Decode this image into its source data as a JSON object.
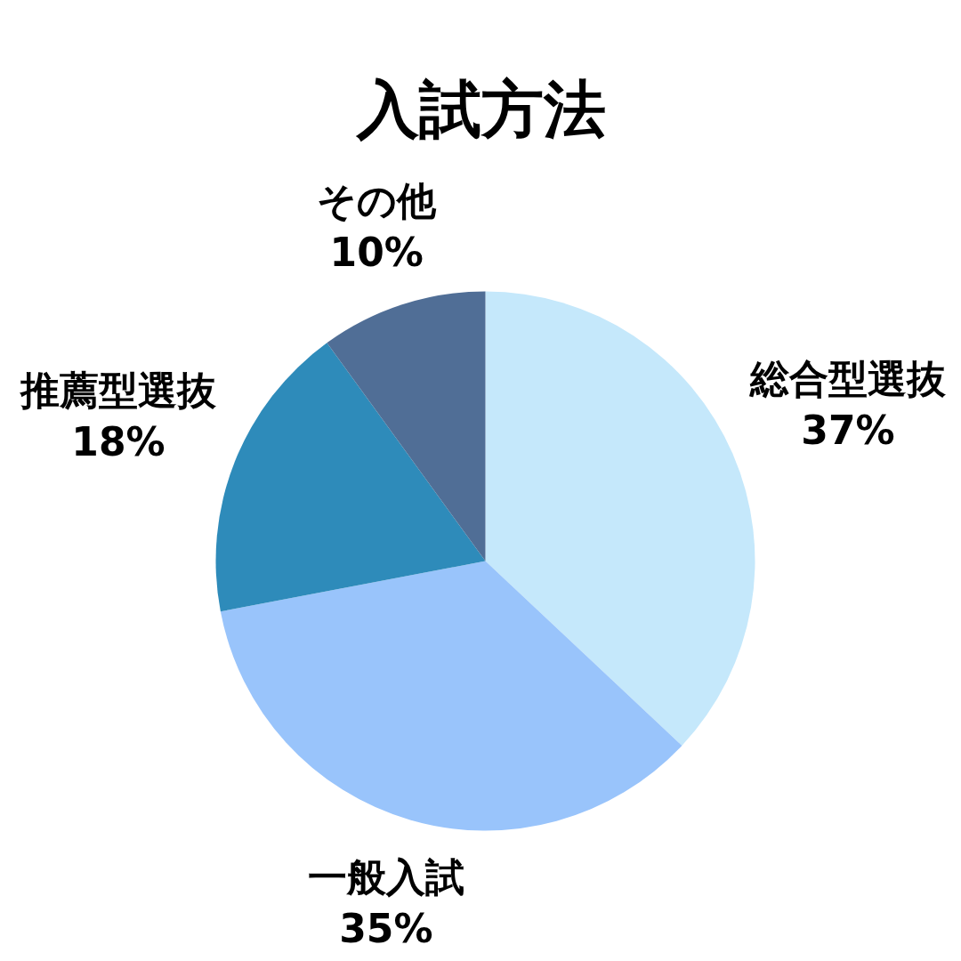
{
  "chart_data": {
    "type": "pie",
    "title": "入試方法",
    "categories": [
      "総合型選抜",
      "一般入試",
      "推薦型選抜",
      "その他"
    ],
    "values": [
      37,
      35,
      18,
      10
    ],
    "colors": [
      "#c5e8fb",
      "#99c4fb",
      "#2e8bba",
      "#506e96"
    ],
    "value_labels": [
      "37%",
      "35%",
      "18%",
      "10%"
    ]
  }
}
